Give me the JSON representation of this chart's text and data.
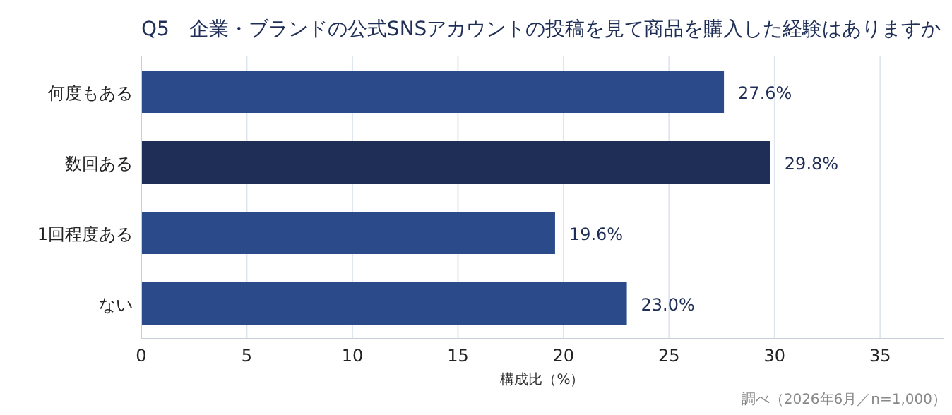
{
  "chart_data": {
    "type": "bar",
    "orientation": "horizontal",
    "title": "Q5　企業・ブランドの公式SNSアカウントの投稿を見て商品を購入した経験はありますか",
    "xlabel": "構成比（%）",
    "categories": [
      "何度もある",
      "数回ある",
      "1回程度ある",
      "ない"
    ],
    "values": [
      27.6,
      29.8,
      19.6,
      23.0
    ],
    "colors": [
      "#2a4a8a",
      "#1f2e56",
      "#2a4a8a",
      "#2a4a8a"
    ],
    "value_labels": [
      "27.6%",
      "29.8%",
      "19.6%",
      "23.0%"
    ],
    "xlim": [
      0,
      38
    ],
    "xticks": [
      0,
      5,
      10,
      15,
      20,
      25,
      30,
      35
    ],
    "grid": "x",
    "annotations": [
      "調べ（2026年6月／n=1,000）"
    ]
  }
}
